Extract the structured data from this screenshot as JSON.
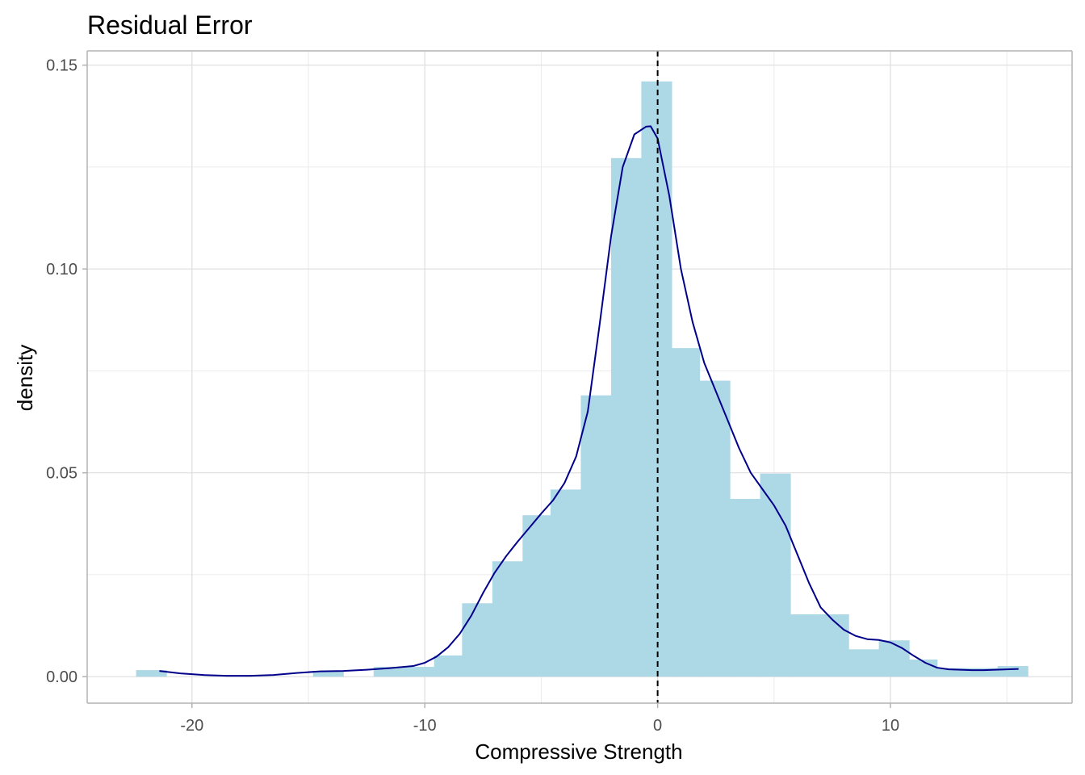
{
  "chart_data": {
    "type": "histogram",
    "title": "Residual Error",
    "xlabel": "Compressive Strength",
    "ylabel": "density",
    "xlim": [
      -24.5,
      17.8
    ],
    "ylim": [
      -0.0065,
      0.1535
    ],
    "x_ticks": [
      -20,
      -10,
      0,
      10
    ],
    "x_tick_labels": [
      "-20",
      "-10",
      "0",
      "10"
    ],
    "x_minor_ticks": [
      -25,
      -15,
      -5,
      5,
      15
    ],
    "y_ticks": [
      0.0,
      0.05,
      0.1,
      0.15
    ],
    "y_tick_labels": [
      "0.00",
      "0.05",
      "0.10",
      "0.15"
    ],
    "y_minor_ticks": [
      0.025,
      0.075,
      0.125
    ],
    "grid": true,
    "bin_width": 1.27,
    "bins": [
      {
        "x0": -22.4,
        "x1": -21.1,
        "density": 0.0016
      },
      {
        "x0": -14.8,
        "x1": -13.5,
        "density": 0.0014
      },
      {
        "x0": -12.2,
        "x1": -10.9,
        "density": 0.0024
      },
      {
        "x0": -10.9,
        "x1": -9.6,
        "density": 0.0024
      },
      {
        "x0": -9.6,
        "x1": -8.4,
        "density": 0.0052
      },
      {
        "x0": -8.4,
        "x1": -7.1,
        "density": 0.018
      },
      {
        "x0": -7.1,
        "x1": -5.8,
        "density": 0.0283
      },
      {
        "x0": -5.8,
        "x1": -4.6,
        "density": 0.0396
      },
      {
        "x0": -4.6,
        "x1": -3.3,
        "density": 0.0459
      },
      {
        "x0": -3.3,
        "x1": -2.0,
        "density": 0.069
      },
      {
        "x0": -2.0,
        "x1": -0.7,
        "density": 0.1272
      },
      {
        "x0": -0.7,
        "x1": 0.6,
        "density": 0.146
      },
      {
        "x0": 0.6,
        "x1": 1.8,
        "density": 0.0806
      },
      {
        "x0": 1.8,
        "x1": 3.1,
        "density": 0.0726
      },
      {
        "x0": 3.1,
        "x1": 4.4,
        "density": 0.0436
      },
      {
        "x0": 4.4,
        "x1": 5.7,
        "density": 0.0498
      },
      {
        "x0": 5.7,
        "x1": 6.9,
        "density": 0.0153
      },
      {
        "x0": 6.9,
        "x1": 8.2,
        "density": 0.0153
      },
      {
        "x0": 8.2,
        "x1": 9.5,
        "density": 0.0067
      },
      {
        "x0": 9.5,
        "x1": 10.8,
        "density": 0.0089
      },
      {
        "x0": 10.8,
        "x1": 12.0,
        "density": 0.0042
      },
      {
        "x0": 12.0,
        "x1": 13.3,
        "density": 0.0021
      },
      {
        "x0": 13.3,
        "x1": 14.6,
        "density": 0.0021
      },
      {
        "x0": 14.6,
        "x1": 15.9,
        "density": 0.0026
      }
    ],
    "density_curve": {
      "x": [
        -21.4,
        -20.5,
        -19.5,
        -18.5,
        -17.5,
        -16.5,
        -15.5,
        -14.5,
        -13.5,
        -12.5,
        -11.5,
        -10.5,
        -10.0,
        -9.5,
        -9.0,
        -8.5,
        -8.0,
        -7.5,
        -7.0,
        -6.5,
        -6.0,
        -5.5,
        -5.0,
        -4.5,
        -4.0,
        -3.5,
        -3.0,
        -2.5,
        -2.0,
        -1.5,
        -1.0,
        -0.5,
        -0.3,
        0.0,
        0.5,
        1.0,
        1.5,
        2.0,
        2.5,
        3.0,
        3.5,
        4.0,
        4.5,
        5.0,
        5.5,
        6.0,
        6.5,
        7.0,
        7.5,
        8.0,
        8.5,
        9.0,
        9.5,
        10.0,
        10.5,
        11.0,
        11.5,
        12.0,
        12.5,
        13.0,
        13.5,
        14.0,
        14.5,
        15.0,
        15.5
      ],
      "y": [
        0.0014,
        0.0008,
        0.0004,
        0.0002,
        0.0002,
        0.0004,
        0.0009,
        0.0013,
        0.0014,
        0.0017,
        0.0021,
        0.0026,
        0.0034,
        0.0049,
        0.0072,
        0.0105,
        0.015,
        0.0205,
        0.0255,
        0.0296,
        0.0332,
        0.0366,
        0.04,
        0.0432,
        0.0475,
        0.054,
        0.065,
        0.086,
        0.108,
        0.125,
        0.133,
        0.1349,
        0.135,
        0.132,
        0.118,
        0.1,
        0.087,
        0.077,
        0.07,
        0.063,
        0.056,
        0.05,
        0.046,
        0.042,
        0.037,
        0.03,
        0.023,
        0.017,
        0.014,
        0.0115,
        0.01,
        0.0092,
        0.009,
        0.0084,
        0.007,
        0.0051,
        0.0034,
        0.0022,
        0.0018,
        0.0017,
        0.0016,
        0.0016,
        0.0017,
        0.0018,
        0.0019
      ]
    },
    "reference_line": {
      "x": 0,
      "style": "dashed"
    },
    "colors": {
      "bar_fill": "#add8e6",
      "curve": "#00008b",
      "reference_line": "#000000",
      "grid": "#ebebeb",
      "panel_border": "#b3b3b3",
      "tick_text": "#4d4d4d",
      "axis_line": "#b3b3b3"
    }
  }
}
